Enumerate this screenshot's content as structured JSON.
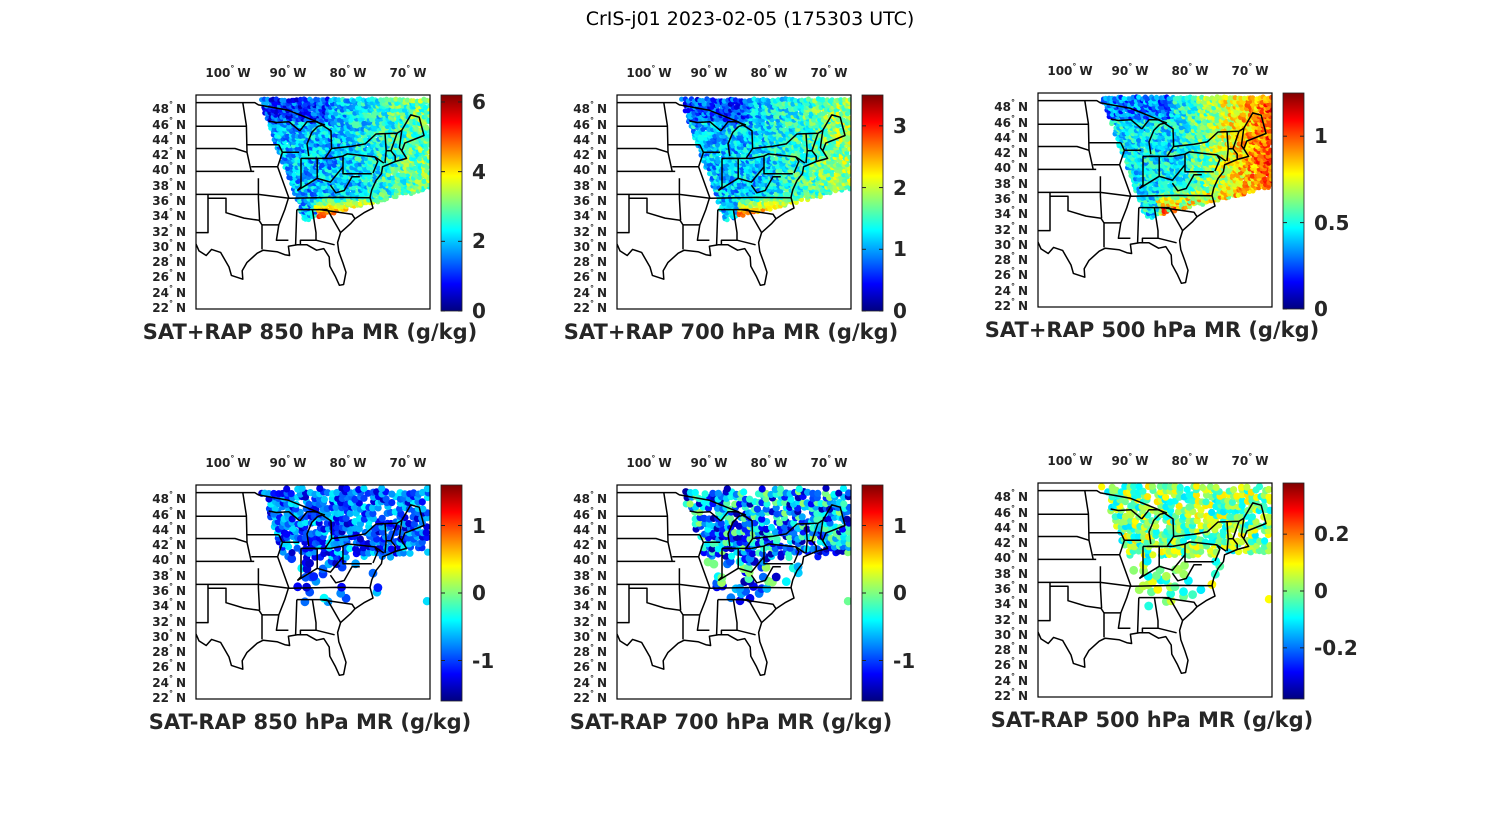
{
  "figure": {
    "title": "CrIS-j01 2023-02-05 (175303 UTC)"
  },
  "axes": {
    "lon_ticks": [
      {
        "value": -100,
        "label": "100",
        "hemi": "W"
      },
      {
        "value": -90,
        "label": "90",
        "hemi": "W"
      },
      {
        "value": -80,
        "label": "80",
        "hemi": "W"
      },
      {
        "value": -70,
        "label": "70",
        "hemi": "W"
      }
    ],
    "lat_ticks": [
      {
        "value": 48,
        "label": "48",
        "hemi": "N"
      },
      {
        "value": 46,
        "label": "46",
        "hemi": "N"
      },
      {
        "value": 44,
        "label": "44",
        "hemi": "N"
      },
      {
        "value": 42,
        "label": "42",
        "hemi": "N"
      },
      {
        "value": 40,
        "label": "40",
        "hemi": "N"
      },
      {
        "value": 38,
        "label": "38",
        "hemi": "N"
      },
      {
        "value": 36,
        "label": "36",
        "hemi": "N"
      },
      {
        "value": 34,
        "label": "34",
        "hemi": "N"
      },
      {
        "value": 32,
        "label": "32",
        "hemi": "N"
      },
      {
        "value": 30,
        "label": "30",
        "hemi": "N"
      },
      {
        "value": 28,
        "label": "28",
        "hemi": "N"
      },
      {
        "value": 26,
        "label": "26",
        "hemi": "N"
      },
      {
        "value": 24,
        "label": "24",
        "hemi": "N"
      },
      {
        "value": 22,
        "label": "22",
        "hemi": "N"
      }
    ],
    "degree_symbol": "°"
  },
  "chart_data": [
    {
      "type": "heatmap",
      "map": "scatter",
      "title": "SAT+RAP 850 hPa MR (g/kg)",
      "colormap": "jet",
      "clim": [
        0,
        6.2
      ],
      "colorbar_ticks": [
        {
          "value": 0,
          "label": "0"
        },
        {
          "value": 2,
          "label": "2"
        },
        {
          "value": 4,
          "label": "4"
        },
        {
          "value": 6,
          "label": "6"
        }
      ],
      "lon_range": [
        -105,
        -66
      ],
      "lat_range": [
        22,
        50
      ],
      "mode": "full",
      "seed": 11,
      "field": {
        "base": 1.9,
        "south_max": 6.0,
        "south_lat": 37,
        "east_boost": 1.2
      },
      "markers": "small"
    },
    {
      "type": "heatmap",
      "map": "scatter",
      "title": "SAT+RAP 700 hPa MR (g/kg)",
      "colormap": "jet",
      "clim": [
        0,
        3.5
      ],
      "colorbar_ticks": [
        {
          "value": 0,
          "label": "0"
        },
        {
          "value": 1,
          "label": "1"
        },
        {
          "value": 2,
          "label": "2"
        },
        {
          "value": 3,
          "label": "3"
        }
      ],
      "lon_range": [
        -105,
        -66
      ],
      "lat_range": [
        22,
        50
      ],
      "mode": "full",
      "seed": 23,
      "field": {
        "base": 1.1,
        "south_max": 3.4,
        "south_lat": 37,
        "east_boost": 0.8
      },
      "markers": "small"
    },
    {
      "type": "heatmap",
      "map": "scatter",
      "title": "SAT+RAP 500 hPa MR (g/kg)",
      "colormap": "jet",
      "clim": [
        0,
        1.25
      ],
      "colorbar_ticks": [
        {
          "value": 0,
          "label": "0"
        },
        {
          "value": 0.5,
          "label": "0.5"
        },
        {
          "value": 1,
          "label": "1"
        }
      ],
      "lon_range": [
        -105,
        -66
      ],
      "lat_range": [
        22,
        50
      ],
      "mode": "full",
      "seed": 37,
      "field": {
        "base": 0.45,
        "south_max": 1.15,
        "south_lat": 38,
        "east_boost": 0.55
      },
      "markers": "small"
    },
    {
      "type": "heatmap",
      "map": "scatter",
      "title": "SAT-RAP 850 hPa MR (g/kg)",
      "colormap": "jet",
      "clim": [
        -1.6,
        1.6
      ],
      "colorbar_ticks": [
        {
          "value": -1,
          "label": "-1"
        },
        {
          "value": 0,
          "label": "0"
        },
        {
          "value": 1,
          "label": "1"
        }
      ],
      "lon_range": [
        -105,
        -66
      ],
      "lat_range": [
        22,
        50
      ],
      "mode": "sparse",
      "seed": 51,
      "field": {
        "base": -0.9,
        "spread": 0.5
      },
      "markers": "large"
    },
    {
      "type": "heatmap",
      "map": "scatter",
      "title": "SAT-RAP 700 hPa MR (g/kg)",
      "colormap": "jet",
      "clim": [
        -1.6,
        1.6
      ],
      "colorbar_ticks": [
        {
          "value": -1,
          "label": "-1"
        },
        {
          "value": 0,
          "label": "0"
        },
        {
          "value": 1,
          "label": "1"
        }
      ],
      "lon_range": [
        -105,
        -66
      ],
      "lat_range": [
        22,
        50
      ],
      "mode": "sparse",
      "seed": 67,
      "field": {
        "base": -0.7,
        "spread": 0.8
      },
      "markers": "large"
    },
    {
      "type": "heatmap",
      "map": "scatter",
      "title": "SAT-RAP 500 hPa MR (g/kg)",
      "colormap": "jet",
      "clim": [
        -0.38,
        0.38
      ],
      "colorbar_ticks": [
        {
          "value": -0.2,
          "label": "-0.2"
        },
        {
          "value": 0,
          "label": "0"
        },
        {
          "value": 0.2,
          "label": "0.2"
        }
      ],
      "lon_range": [
        -105,
        -66
      ],
      "lat_range": [
        22,
        50
      ],
      "mode": "sparse",
      "seed": 83,
      "field": {
        "base": 0.0,
        "spread": 0.12
      },
      "markers": "large"
    }
  ]
}
